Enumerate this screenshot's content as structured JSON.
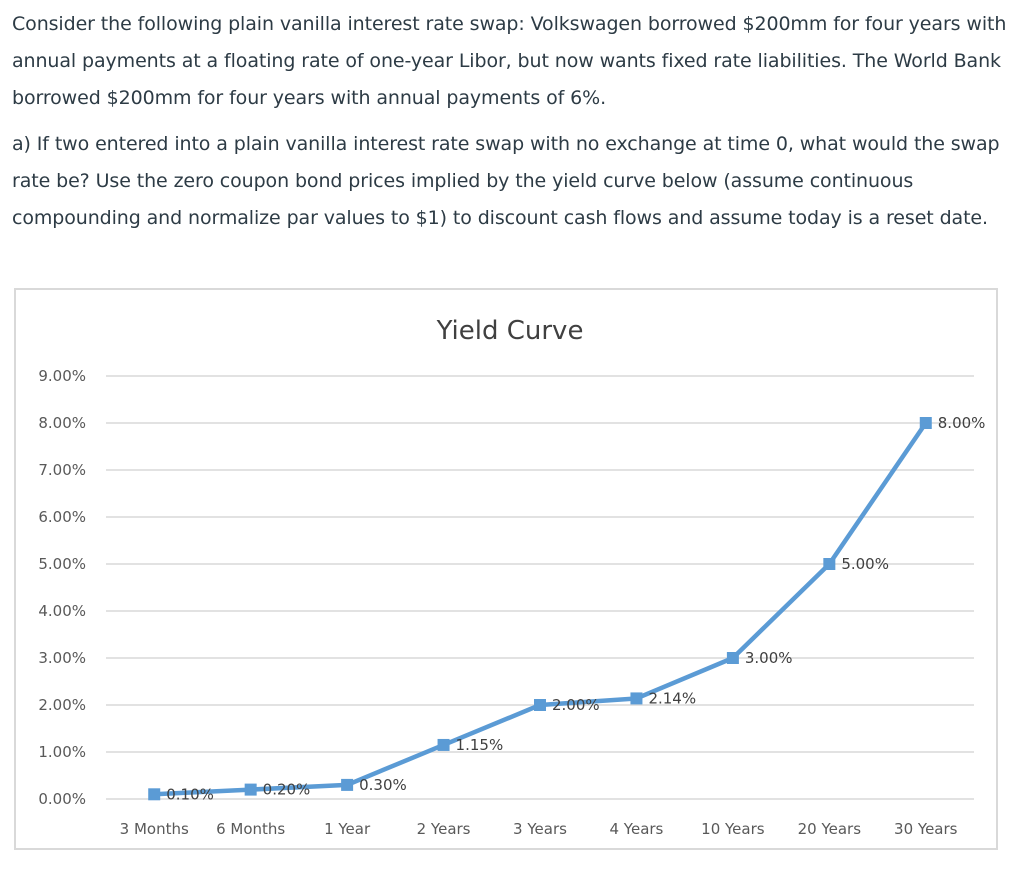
{
  "question": {
    "intro": "Consider the following plain vanilla interest rate swap: Volkswagen borrowed $200mm for four years with annual payments at a floating rate of one-year Libor, but now wants fixed rate liabilities. The World Bank borrowed $200mm for four years with annual payments of 6%.",
    "part_a": "a) If two entered into a plain vanilla interest rate swap with no exchange at time 0, what would the swap rate be? Use the zero coupon bond prices implied by the yield curve below (assume continuous compounding and normalize par values to $1) to discount cash flows and assume today is a reset date."
  },
  "chart_data": {
    "type": "line",
    "title": "Yield Curve",
    "xlabel": "",
    "ylabel": "",
    "categories": [
      "3 Months",
      "6 Months",
      "1 Year",
      "2 Years",
      "3 Years",
      "4 Years",
      "10 Years",
      "20 Years",
      "30 Years"
    ],
    "series": [
      {
        "values": [
          0.1,
          0.2,
          0.3,
          1.15,
          2.0,
          2.14,
          3.0,
          5.0,
          8.0
        ],
        "data_labels": [
          "0.10%",
          "0.20%",
          "0.30%",
          "1.15%",
          "2.00%",
          "2.14%",
          "3.00%",
          "5.00%",
          "8.00%"
        ]
      }
    ],
    "y_tick_labels": [
      "0.00%",
      "1.00%",
      "2.00%",
      "3.00%",
      "4.00%",
      "5.00%",
      "6.00%",
      "7.00%",
      "8.00%",
      "9.00%"
    ],
    "ylim": [
      0,
      9
    ],
    "grid": true,
    "legend": "none",
    "line_color": "#5b9bd5",
    "grid_color": "#d9d9d9"
  }
}
